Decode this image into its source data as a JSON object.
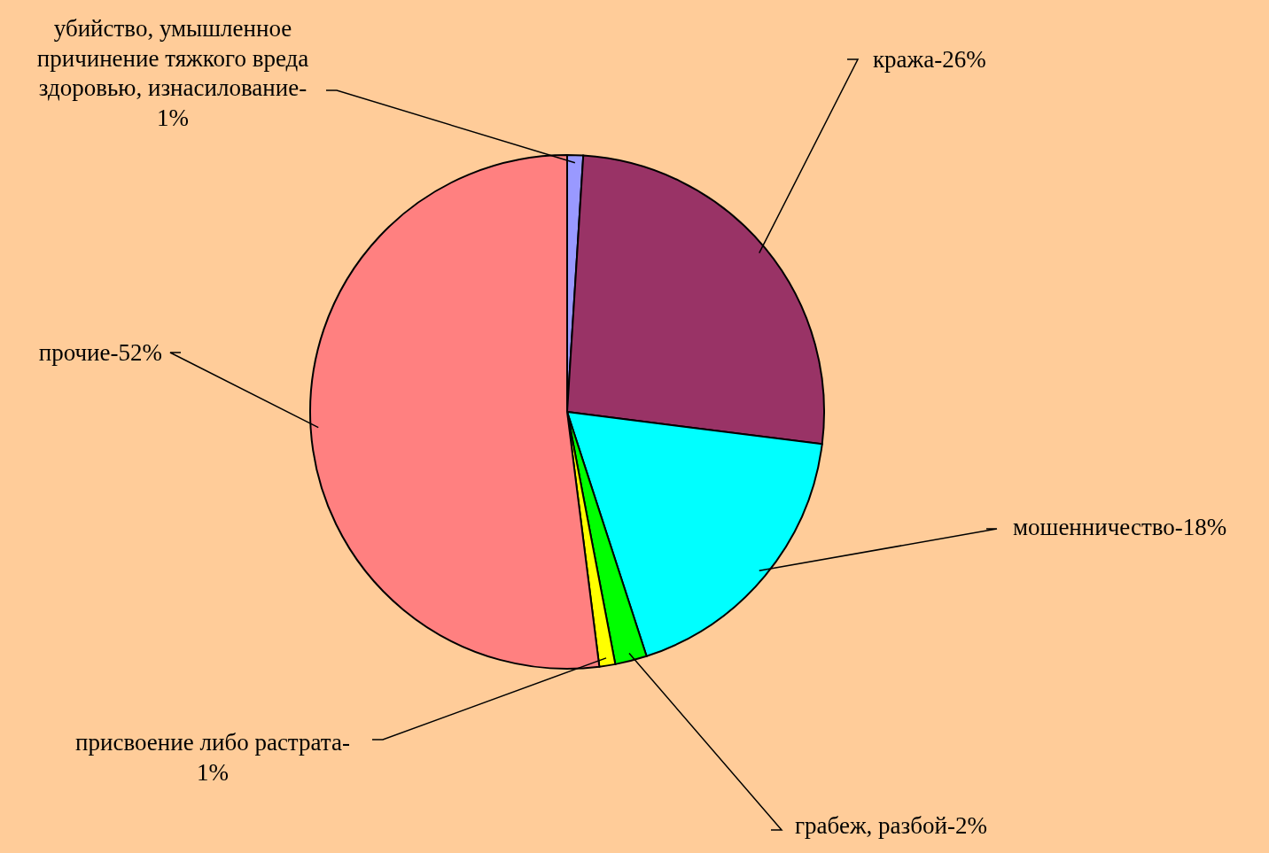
{
  "chart_data": {
    "type": "pie",
    "categories": [
      "убийство, умышленное\nпричинение тяжкого вреда\nздоровью, изнасилование-\n1%",
      "кража-26%",
      "мошенничество-18%",
      "грабеж, разбой-2%",
      "присвоение либо растрата-\n1%",
      "прочие-52%"
    ],
    "values": [
      1,
      26,
      18,
      2,
      1,
      52
    ],
    "colors": [
      "#9999ff",
      "#993366",
      "#00ffff",
      "#00ff00",
      "#ffff00",
      "#ff8080"
    ],
    "legend": false
  }
}
